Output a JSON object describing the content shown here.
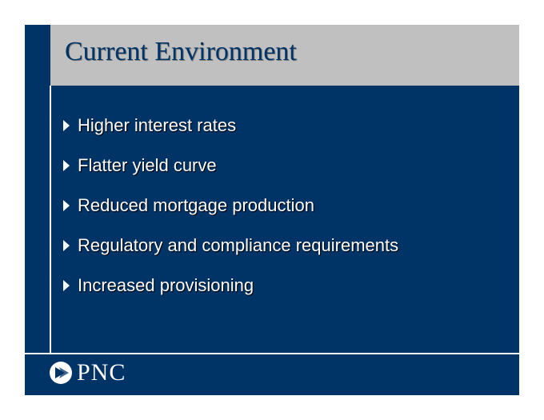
{
  "slide": {
    "title": "Current Environment",
    "bullets": [
      "Higher interest rates",
      "Flatter yield curve",
      "Reduced mortgage production",
      "Regulatory and compliance requirements",
      "Increased provisioning"
    ],
    "logo_text": "PNC"
  },
  "colors": {
    "background": "#003366",
    "title_bar": "#c0c0c0",
    "title_text": "#003366",
    "bullet_text": "#ffffff"
  },
  "icons": {
    "bullet": "triangle-right-icon",
    "logo": "pnc-logo-mark-icon"
  }
}
